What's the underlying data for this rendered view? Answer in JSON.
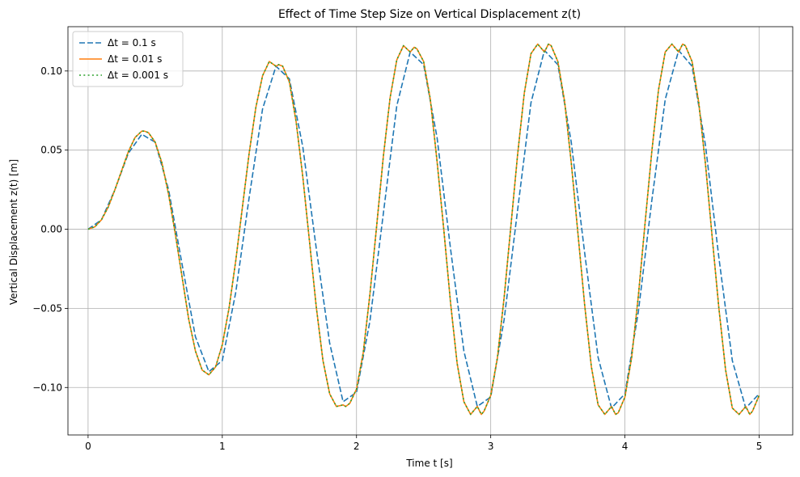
{
  "chart_data": {
    "type": "line",
    "title": "Effect of Time Step Size on Vertical Displacement z(t)",
    "xlabel": "Time t [s]",
    "ylabel": "Vertical Displacement z(t) [m]",
    "xlim": [
      -0.15,
      5.25
    ],
    "ylim": [
      -0.13,
      0.128
    ],
    "xticks": [
      0,
      1,
      2,
      3,
      4,
      5
    ],
    "xtick_labels": [
      "0",
      "1",
      "2",
      "3",
      "4",
      "5"
    ],
    "yticks": [
      -0.1,
      -0.05,
      0.0,
      0.05,
      0.1
    ],
    "ytick_labels": [
      "−0.10",
      "−0.05",
      "0.00",
      "0.05",
      "0.10"
    ],
    "grid": true,
    "legend_position": "top-left",
    "series": [
      {
        "name": "Δt = 0.1 s",
        "color": "#1f77b4",
        "style": "dashed",
        "x": [
          0,
          0.1,
          0.2,
          0.3,
          0.4,
          0.5,
          0.6,
          0.7,
          0.8,
          0.9,
          1.0,
          1.1,
          1.2,
          1.3,
          1.4,
          1.5,
          1.6,
          1.7,
          1.8,
          1.9,
          2.0,
          2.1,
          2.2,
          2.3,
          2.4,
          2.5,
          2.6,
          2.7,
          2.8,
          2.9,
          3.0,
          3.1,
          3.2,
          3.3,
          3.4,
          3.5,
          3.6,
          3.7,
          3.8,
          3.9,
          4.0,
          4.1,
          4.2,
          4.3,
          4.4,
          4.5,
          4.6,
          4.7,
          4.8,
          4.9,
          5.0
        ],
        "y": [
          0,
          0.006,
          0.025,
          0.048,
          0.06,
          0.055,
          0.025,
          -0.022,
          -0.068,
          -0.09,
          -0.083,
          -0.04,
          0.02,
          0.076,
          0.103,
          0.095,
          0.052,
          -0.012,
          -0.072,
          -0.109,
          -0.103,
          -0.058,
          0.01,
          0.078,
          0.112,
          0.104,
          0.058,
          -0.012,
          -0.077,
          -0.112,
          -0.106,
          -0.057,
          0.012,
          0.08,
          0.113,
          0.104,
          0.055,
          -0.015,
          -0.081,
          -0.113,
          -0.104,
          -0.052,
          0.018,
          0.082,
          0.113,
          0.103,
          0.053,
          -0.018,
          -0.083,
          -0.113,
          -0.104
        ]
      },
      {
        "name": "Δt = 0.01 s",
        "color": "#ff7f0e",
        "style": "solid",
        "x": [
          0,
          0.05,
          0.1,
          0.15,
          0.2,
          0.25,
          0.3,
          0.35,
          0.4,
          0.42,
          0.45,
          0.5,
          0.55,
          0.6,
          0.65,
          0.7,
          0.75,
          0.8,
          0.85,
          0.9,
          0.95,
          1.0,
          1.05,
          1.1,
          1.15,
          1.2,
          1.25,
          1.3,
          1.35,
          1.4,
          1.42,
          1.45,
          1.5,
          1.55,
          1.6,
          1.65,
          1.7,
          1.75,
          1.8,
          1.85,
          1.9,
          1.92,
          1.95,
          2.0,
          2.05,
          2.1,
          2.15,
          2.2,
          2.25,
          2.3,
          2.35,
          2.4,
          2.43,
          2.45,
          2.5,
          2.55,
          2.6,
          2.65,
          2.7,
          2.75,
          2.8,
          2.85,
          2.9,
          2.93,
          2.95,
          3.0,
          3.05,
          3.1,
          3.15,
          3.2,
          3.25,
          3.3,
          3.35,
          3.4,
          3.43,
          3.45,
          3.5,
          3.55,
          3.6,
          3.65,
          3.7,
          3.75,
          3.8,
          3.85,
          3.9,
          3.93,
          3.95,
          4.0,
          4.05,
          4.1,
          4.15,
          4.2,
          4.25,
          4.3,
          4.35,
          4.4,
          4.43,
          4.45,
          4.5,
          4.55,
          4.6,
          4.65,
          4.7,
          4.75,
          4.8,
          4.85,
          4.9,
          4.93,
          4.95,
          5.0
        ],
        "y": [
          0,
          0.0015,
          0.006,
          0.014,
          0.025,
          0.037,
          0.049,
          0.058,
          0.062,
          0.062,
          0.061,
          0.055,
          0.042,
          0.022,
          -0.003,
          -0.03,
          -0.057,
          -0.077,
          -0.089,
          -0.092,
          -0.087,
          -0.073,
          -0.05,
          -0.02,
          0.014,
          0.048,
          0.077,
          0.097,
          0.106,
          0.103,
          0.104,
          0.103,
          0.093,
          0.068,
          0.033,
          -0.008,
          -0.049,
          -0.083,
          -0.104,
          -0.112,
          -0.111,
          -0.112,
          -0.11,
          -0.101,
          -0.078,
          -0.041,
          0.002,
          0.046,
          0.083,
          0.107,
          0.116,
          0.112,
          0.115,
          0.114,
          0.106,
          0.082,
          0.043,
          0.0,
          -0.046,
          -0.085,
          -0.109,
          -0.117,
          -0.112,
          -0.117,
          -0.115,
          -0.105,
          -0.081,
          -0.043,
          0.002,
          0.047,
          0.086,
          0.111,
          0.117,
          0.112,
          0.117,
          0.116,
          0.106,
          0.081,
          0.042,
          -0.003,
          -0.048,
          -0.087,
          -0.111,
          -0.117,
          -0.112,
          -0.117,
          -0.116,
          -0.106,
          -0.081,
          -0.042,
          0.004,
          0.049,
          0.088,
          0.112,
          0.117,
          0.112,
          0.117,
          0.116,
          0.106,
          0.08,
          0.041,
          -0.005,
          -0.05,
          -0.089,
          -0.113,
          -0.117,
          -0.112,
          -0.117,
          -0.115,
          -0.105
        ]
      },
      {
        "name": "Δt = 0.001 s",
        "color": "#2ca02c",
        "style": "dotted",
        "x": [
          0,
          0.05,
          0.1,
          0.15,
          0.2,
          0.25,
          0.3,
          0.35,
          0.4,
          0.42,
          0.45,
          0.5,
          0.55,
          0.6,
          0.65,
          0.7,
          0.75,
          0.8,
          0.85,
          0.9,
          0.95,
          1.0,
          1.05,
          1.1,
          1.15,
          1.2,
          1.25,
          1.3,
          1.35,
          1.4,
          1.42,
          1.45,
          1.5,
          1.55,
          1.6,
          1.65,
          1.7,
          1.75,
          1.8,
          1.85,
          1.9,
          1.92,
          1.95,
          2.0,
          2.05,
          2.1,
          2.15,
          2.2,
          2.25,
          2.3,
          2.35,
          2.4,
          2.43,
          2.45,
          2.5,
          2.55,
          2.6,
          2.65,
          2.7,
          2.75,
          2.8,
          2.85,
          2.9,
          2.93,
          2.95,
          3.0,
          3.05,
          3.1,
          3.15,
          3.2,
          3.25,
          3.3,
          3.35,
          3.4,
          3.43,
          3.45,
          3.5,
          3.55,
          3.6,
          3.65,
          3.7,
          3.75,
          3.8,
          3.85,
          3.9,
          3.93,
          3.95,
          4.0,
          4.05,
          4.1,
          4.15,
          4.2,
          4.25,
          4.3,
          4.35,
          4.4,
          4.43,
          4.45,
          4.5,
          4.55,
          4.6,
          4.65,
          4.7,
          4.75,
          4.8,
          4.85,
          4.9,
          4.93,
          4.95,
          5.0
        ],
        "y": [
          0,
          0.0015,
          0.006,
          0.014,
          0.025,
          0.037,
          0.049,
          0.058,
          0.062,
          0.062,
          0.061,
          0.055,
          0.042,
          0.022,
          -0.003,
          -0.03,
          -0.057,
          -0.077,
          -0.089,
          -0.092,
          -0.087,
          -0.073,
          -0.05,
          -0.02,
          0.014,
          0.048,
          0.077,
          0.097,
          0.106,
          0.103,
          0.104,
          0.103,
          0.093,
          0.068,
          0.033,
          -0.008,
          -0.049,
          -0.083,
          -0.104,
          -0.112,
          -0.111,
          -0.112,
          -0.11,
          -0.101,
          -0.078,
          -0.041,
          0.002,
          0.046,
          0.083,
          0.107,
          0.116,
          0.112,
          0.115,
          0.114,
          0.106,
          0.082,
          0.043,
          0.0,
          -0.046,
          -0.085,
          -0.109,
          -0.117,
          -0.112,
          -0.117,
          -0.115,
          -0.105,
          -0.081,
          -0.043,
          0.002,
          0.047,
          0.086,
          0.111,
          0.117,
          0.112,
          0.117,
          0.116,
          0.106,
          0.081,
          0.042,
          -0.003,
          -0.048,
          -0.087,
          -0.111,
          -0.117,
          -0.112,
          -0.117,
          -0.116,
          -0.106,
          -0.081,
          -0.042,
          0.004,
          0.049,
          0.088,
          0.112,
          0.117,
          0.112,
          0.117,
          0.116,
          0.106,
          0.08,
          0.041,
          -0.005,
          -0.05,
          -0.089,
          -0.113,
          -0.117,
          -0.112,
          -0.117,
          -0.115,
          -0.105
        ]
      }
    ]
  }
}
